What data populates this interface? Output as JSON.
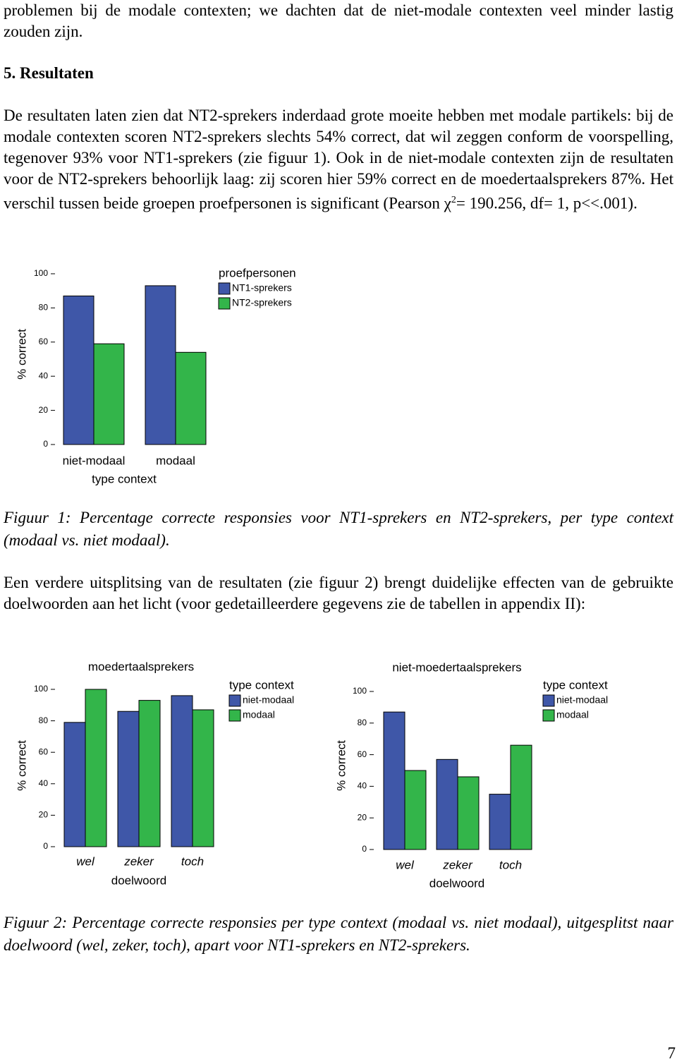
{
  "document": {
    "intro": "problemen bij de modale contexten; we dachten dat de niet-modale contexten veel minder lastig zouden zijn.",
    "heading": "5. Resultaten",
    "results": [
      "De resultaten laten zien dat NT2-sprekers inderdaad grote moeite hebben met modale partikels: bij de modale contexten scoren NT2-sprekers slechts 54% correct, dat wil zeggen conform de voorspelling, tegenover 93% voor NT1-sprekers (zie figuur 1). Ook in de niet-modale contexten zijn de resultaten voor de NT2-sprekers behoorlijk laag: zij scoren hier 59% correct en de moedertaalsprekers 87%. Het verschil tussen beide groepen proefpersonen is significant (Pearson χ",
      "2",
      "= 190.256, df= 1, p<<.001)."
    ],
    "caption1": "Figuur 1: Percentage correcte responsies voor NT1-sprekers en NT2-sprekers, per type context (modaal vs. niet modaal).",
    "paragraph2": "Een verdere uitsplitsing van de resultaten (zie figuur 2) brengt duidelijke effecten van de gebruikte doelwoorden aan het licht (voor gedetailleerdere gegevens zie de tabellen in appendix II):",
    "caption2": "Figuur 2: Percentage correcte responsies per type context (modaal vs. niet modaal), uitgesplitst naar doelwoord (wel, zeker, toch), apart voor NT1-sprekers en NT2-sprekers.",
    "page_number": "7"
  },
  "chart_data": [
    {
      "type": "bar",
      "categories": [
        "niet-modaal",
        "modaal"
      ],
      "x_label": "type context",
      "y_label": "% correct",
      "legend_title": "proefpersonen",
      "series": [
        {
          "name": "NT1-sprekers",
          "color": "#3f57a8",
          "values": [
            87,
            93
          ]
        },
        {
          "name": "NT2-sprekers",
          "color": "#33b54a",
          "values": [
            59,
            54
          ]
        }
      ],
      "ylim": [
        0,
        100
      ],
      "yticks": [
        0,
        20,
        40,
        60,
        80,
        100
      ]
    },
    {
      "type": "bar",
      "title": "moedertaalsprekers",
      "categories": [
        "wel",
        "zeker",
        "toch"
      ],
      "x_label": "doelwoord",
      "y_label": "% correct",
      "legend_title": "type context",
      "series": [
        {
          "name": "niet-modaal",
          "color": "#3f57a8",
          "values": [
            79,
            86,
            96
          ]
        },
        {
          "name": "modaal",
          "color": "#33b54a",
          "values": [
            100,
            93,
            87
          ]
        }
      ],
      "ylim": [
        0,
        100
      ],
      "yticks": [
        0,
        20,
        40,
        60,
        80,
        100
      ]
    },
    {
      "type": "bar",
      "title": "niet-moedertaalsprekers",
      "categories": [
        "wel",
        "zeker",
        "toch"
      ],
      "x_label": "doelwoord",
      "y_label": "% correct",
      "legend_title": "type context",
      "series": [
        {
          "name": "niet-modaal",
          "color": "#3f57a8",
          "values": [
            87,
            57,
            35
          ]
        },
        {
          "name": "modaal",
          "color": "#33b54a",
          "values": [
            50,
            46,
            66
          ]
        }
      ],
      "ylim": [
        0,
        100
      ],
      "yticks": [
        0,
        20,
        40,
        60,
        80,
        100
      ]
    }
  ]
}
